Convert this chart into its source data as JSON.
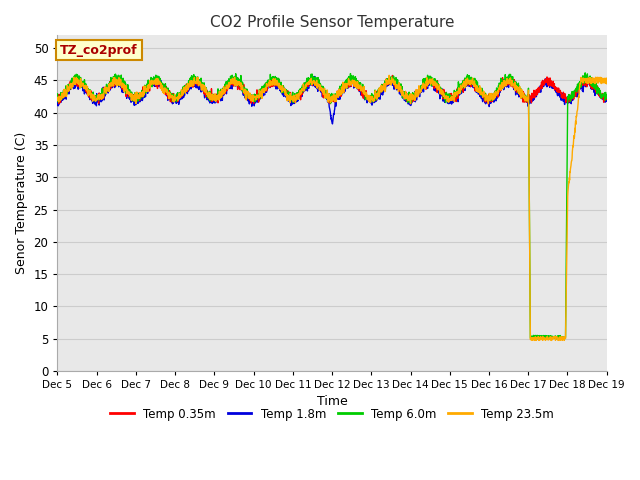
{
  "title": "CO2 Profile Sensor Temperature",
  "ylabel": "Senor Temperature (C)",
  "xlabel": "Time",
  "annotation_text": "TZ_co2prof",
  "ylim": [
    0,
    52
  ],
  "yticks": [
    0,
    5,
    10,
    15,
    20,
    25,
    30,
    35,
    40,
    45,
    50
  ],
  "legend": [
    {
      "label": "Temp 0.35m",
      "color": "#ff0000"
    },
    {
      "label": "Temp 1.8m",
      "color": "#0000dd"
    },
    {
      "label": "Temp 6.0m",
      "color": "#00cc00"
    },
    {
      "label": "Temp 23.5m",
      "color": "#ffaa00"
    }
  ],
  "plot_bg_color": "#e8e8e8",
  "fig_bg_color": "#ffffff",
  "line_width": 1.0,
  "figsize": [
    6.4,
    4.8
  ],
  "dpi": 100,
  "xtick_labels": [
    "Dec 5",
    "Dec 6",
    "Dec 7",
    "Dec 8",
    "Dec 9",
    "Dec 10",
    "Dec 11",
    "Dec 12",
    "Dec 13",
    "Dec 14",
    "Dec 15",
    "Dec 16",
    "Dec 17",
    "Dec 18",
    "Dec 19"
  ]
}
